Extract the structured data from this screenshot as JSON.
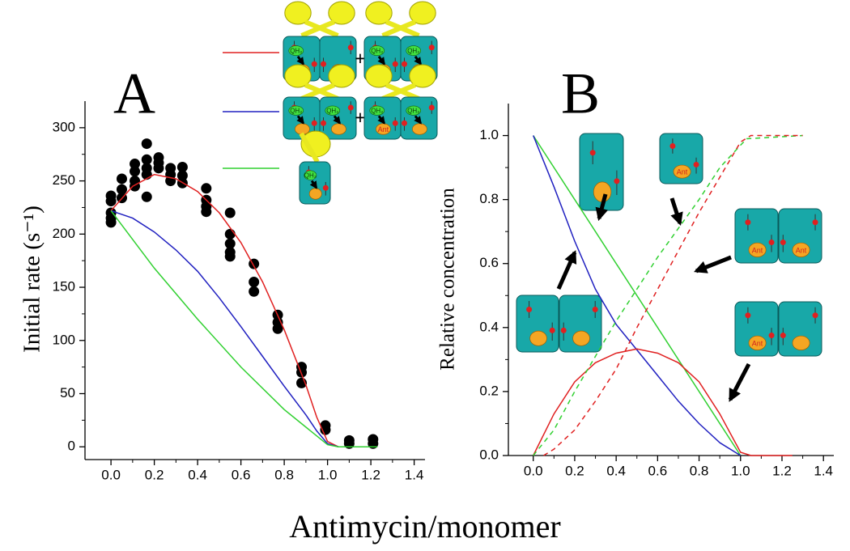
{
  "figure": {
    "xlabel": "Antimycin/monomer"
  },
  "icon_text": {
    "ant": "Ant",
    "qh2": "QH₂",
    "plus": "+"
  },
  "chart_data": [
    {
      "type": "scatter",
      "panel_label": "A",
      "ylabel": "Initial rate (s⁻¹)",
      "xlim": [
        -0.12,
        1.45
      ],
      "ylim": [
        -12,
        325
      ],
      "xticks": [
        {
          "value": 0,
          "label": "0.0"
        },
        {
          "value": 0.2,
          "label": "0.2"
        },
        {
          "value": 0.4,
          "label": "0.4"
        },
        {
          "value": 0.6,
          "label": "0.6"
        },
        {
          "value": 0.8,
          "label": "0.8"
        },
        {
          "value": 1,
          "label": "1.0"
        },
        {
          "value": 1.2,
          "label": "1.2"
        },
        {
          "value": 1.4,
          "label": "1.4"
        }
      ],
      "yticks": [
        0,
        50,
        100,
        150,
        200,
        250,
        300
      ],
      "series": [
        {
          "kind": "markers",
          "color": "#000000",
          "x": [
            0,
            0,
            0,
            0,
            0,
            0.05,
            0.05,
            0.05,
            0.11,
            0.11,
            0.11,
            0.11,
            0.165,
            0.165,
            0.165,
            0.165,
            0.165,
            0.22,
            0.22,
            0.22,
            0.275,
            0.275,
            0.275,
            0.33,
            0.33,
            0.33,
            0.44,
            0.44,
            0.44,
            0.44,
            0.55,
            0.55,
            0.55,
            0.55,
            0.55,
            0.66,
            0.66,
            0.66,
            0.77,
            0.77,
            0.77,
            0.88,
            0.88,
            0.88,
            0.99,
            0.99,
            1.1,
            1.1,
            1.21,
            1.21
          ],
          "values": [
            236,
            231,
            220,
            215,
            211,
            252,
            242,
            234,
            266,
            259,
            250,
            245,
            285,
            270,
            262,
            256,
            235,
            272,
            267,
            262,
            262,
            256,
            250,
            263,
            255,
            248,
            243,
            232,
            226,
            221,
            220,
            200,
            191,
            183,
            179,
            172,
            155,
            146,
            124,
            117,
            111,
            75,
            70,
            60,
            20,
            16,
            6,
            3,
            7,
            3
          ]
        },
        {
          "kind": "line",
          "color": "#e02020",
          "x": [
            0,
            0.1,
            0.2,
            0.3,
            0.4,
            0.5,
            0.6,
            0.7,
            0.8,
            0.9,
            0.95,
            1.0,
            1.05,
            1.23
          ],
          "values": [
            222,
            245,
            256,
            252,
            240,
            220,
            192,
            155,
            110,
            58,
            28,
            5,
            0,
            0
          ]
        },
        {
          "kind": "line",
          "color": "#2020c0",
          "x": [
            0,
            0.1,
            0.2,
            0.3,
            0.4,
            0.5,
            0.6,
            0.7,
            0.8,
            0.9,
            0.95,
            1.0,
            1.05,
            1.23
          ],
          "values": [
            222,
            215,
            202,
            185,
            165,
            140,
            113,
            85,
            57,
            30,
            15,
            3,
            0,
            0
          ]
        },
        {
          "kind": "line",
          "color": "#30d030",
          "x": [
            0,
            0.2,
            0.4,
            0.6,
            0.8,
            1.0,
            1.05,
            1.23
          ],
          "values": [
            222,
            168,
            120,
            75,
            35,
            2,
            0,
            0
          ]
        }
      ]
    },
    {
      "type": "line",
      "panel_label": "B",
      "ylabel": "Relative concentration",
      "xlim": [
        -0.12,
        1.45
      ],
      "ylim": [
        0,
        1.1
      ],
      "xticks": [
        {
          "value": 0,
          "label": "0.0"
        },
        {
          "value": 0.2,
          "label": "0.2"
        },
        {
          "value": 0.4,
          "label": "0.4"
        },
        {
          "value": 0.6,
          "label": "0.6"
        },
        {
          "value": 0.8,
          "label": "0.8"
        },
        {
          "value": 1,
          "label": "1.0"
        },
        {
          "value": 1.2,
          "label": "1.2"
        },
        {
          "value": 1.4,
          "label": "1.4"
        }
      ],
      "yticks": [
        {
          "value": 0,
          "label": "0.0"
        },
        {
          "value": 0.2,
          "label": "0.2"
        },
        {
          "value": 0.4,
          "label": "0.4"
        },
        {
          "value": 0.6,
          "label": "0.6"
        },
        {
          "value": 0.8,
          "label": "0.8"
        },
        {
          "value": 1,
          "label": "1.0"
        }
      ],
      "series": [
        {
          "color": "#30d030",
          "dashed": false,
          "x": [
            0,
            1.0
          ],
          "values": [
            1,
            0
          ]
        },
        {
          "color": "#2020c0",
          "dashed": false,
          "x": [
            0,
            0.1,
            0.2,
            0.3,
            0.4,
            0.5,
            0.6,
            0.7,
            0.8,
            0.9,
            1.0
          ],
          "values": [
            1,
            0.84,
            0.67,
            0.52,
            0.41,
            0.33,
            0.25,
            0.17,
            0.1,
            0.04,
            0
          ]
        },
        {
          "color": "#e02020",
          "dashed": false,
          "x": [
            0,
            0.1,
            0.2,
            0.3,
            0.4,
            0.5,
            0.6,
            0.7,
            0.8,
            0.9,
            1.0,
            1.05,
            1.25
          ],
          "values": [
            0,
            0.13,
            0.23,
            0.29,
            0.32,
            0.333,
            0.32,
            0.29,
            0.23,
            0.13,
            0.01,
            0,
            0
          ]
        },
        {
          "color": "#30d030",
          "dashed": true,
          "x": [
            0,
            0.1,
            0.2,
            0.4,
            0.6,
            0.8,
            0.9,
            1.0,
            1.03,
            1.3
          ],
          "values": [
            0,
            0.08,
            0.2,
            0.42,
            0.62,
            0.8,
            0.9,
            0.97,
            0.99,
            1.0
          ]
        },
        {
          "color": "#e02020",
          "dashed": true,
          "x": [
            0.05,
            0.1,
            0.2,
            0.3,
            0.4,
            0.5,
            0.6,
            0.7,
            0.8,
            0.9,
            1.0,
            1.05,
            1.3
          ],
          "values": [
            0,
            0.02,
            0.08,
            0.17,
            0.27,
            0.4,
            0.52,
            0.64,
            0.76,
            0.87,
            0.98,
            1.0,
            1.0
          ]
        }
      ]
    }
  ]
}
